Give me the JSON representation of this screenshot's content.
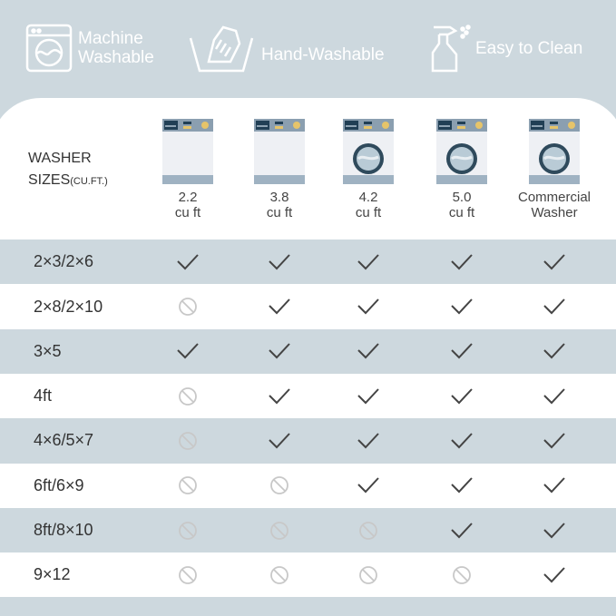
{
  "features": [
    {
      "icon": "washing-machine-icon",
      "label_lines": [
        "Machine",
        "Washable"
      ]
    },
    {
      "icon": "hand-wash-icon",
      "label_lines": [
        "Hand-Washable"
      ]
    },
    {
      "icon": "spray-bottle-icon",
      "label_lines": [
        "Easy to Clean"
      ]
    }
  ],
  "header": {
    "title": "WASHER",
    "subtitle": "SIZES",
    "unit": "(CU.FT.)"
  },
  "columns": [
    {
      "line1": "2.2",
      "line2": "cu ft",
      "door": false
    },
    {
      "line1": "3.8",
      "line2": "cu ft",
      "door": false
    },
    {
      "line1": "4.2",
      "line2": "cu ft",
      "door": true
    },
    {
      "line1": "5.0",
      "line2": "cu ft",
      "door": true
    },
    {
      "line1": "Commercial",
      "line2": "Washer",
      "door": true
    }
  ],
  "rows": [
    {
      "size": "2×3/2×6",
      "fits": [
        true,
        true,
        true,
        true,
        true
      ]
    },
    {
      "size": "2×8/2×10",
      "fits": [
        false,
        true,
        true,
        true,
        true
      ]
    },
    {
      "size": "3×5",
      "fits": [
        true,
        true,
        true,
        true,
        true
      ]
    },
    {
      "size": "4ft",
      "fits": [
        false,
        true,
        true,
        true,
        true
      ]
    },
    {
      "size": "4×6/5×7",
      "fits": [
        false,
        true,
        true,
        true,
        true
      ]
    },
    {
      "size": "6ft/6×9",
      "fits": [
        false,
        false,
        true,
        true,
        true
      ]
    },
    {
      "size": "8ft/8×10",
      "fits": [
        false,
        false,
        false,
        true,
        true
      ]
    },
    {
      "size": "9×12",
      "fits": [
        false,
        false,
        false,
        false,
        true
      ]
    }
  ],
  "colors": {
    "background": "#cdd8de",
    "check": "#444444",
    "no": "#c8c8c8"
  }
}
